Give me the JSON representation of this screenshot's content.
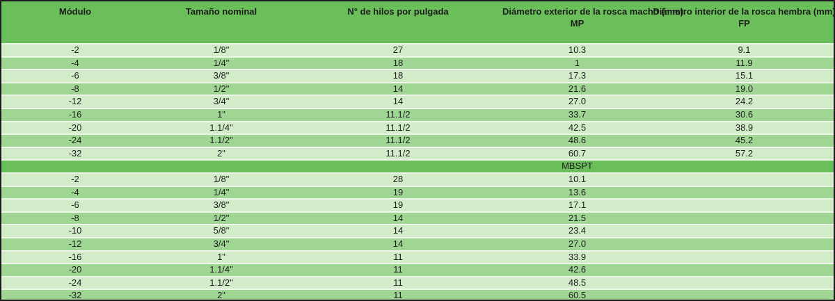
{
  "table": {
    "columns": [
      {
        "line1": "Módulo",
        "line2": ""
      },
      {
        "line1": "Tamaño nominal",
        "line2": ""
      },
      {
        "line1": "N° de hilos por pulgada",
        "line2": ""
      },
      {
        "line1": "Diámetro exterior de la rosca macho (mm)",
        "line2": "MP"
      },
      {
        "line1": "Diámetro interior de la rosca hembra (mm)",
        "line2": "FP"
      }
    ],
    "section_mp": {
      "rows": [
        [
          "-2",
          "1/8\"",
          "27",
          "10.3",
          "9.1"
        ],
        [
          "-4",
          "1/4\"",
          "18",
          "1",
          "11.9"
        ],
        [
          "-6",
          "3/8\"",
          "18",
          "17.3",
          "15.1"
        ],
        [
          "-8",
          "1/2\"",
          "14",
          "21.6",
          "19.0"
        ],
        [
          "-12",
          "3/4\"",
          "14",
          "27.0",
          "24.2"
        ],
        [
          "-16",
          "1\"",
          "11.1/2",
          "33.7",
          "30.6"
        ],
        [
          "-20",
          "1.1/4\"",
          "11.1/2",
          "42.5",
          "38.9"
        ],
        [
          "-24",
          "1.1/2\"",
          "11.1/2",
          "48.6",
          "45.2"
        ],
        [
          "-32",
          "2\"",
          "11.1/2",
          "60.7",
          "57.2"
        ]
      ]
    },
    "divider_label": "MBSPT",
    "section_mbspt": {
      "rows": [
        [
          "-2",
          "1/8\"",
          "28",
          "10.1",
          ""
        ],
        [
          "-4",
          "1/4\"",
          "19",
          "13.6",
          ""
        ],
        [
          "-6",
          "3/8\"",
          "19",
          "17.1",
          ""
        ],
        [
          "-8",
          "1/2\"",
          "14",
          "21.5",
          ""
        ],
        [
          "-10",
          "5/8\"",
          "14",
          "23.4",
          ""
        ],
        [
          "-12",
          "3/4\"",
          "14",
          "27.0",
          ""
        ],
        [
          "-16",
          "1\"",
          "11",
          "33.9",
          ""
        ],
        [
          "-20",
          "1.1/4\"",
          "11",
          "42.6",
          ""
        ],
        [
          "-24",
          "1.1/2\"",
          "11",
          "48.5",
          ""
        ],
        [
          "-32",
          "2\"",
          "11",
          "60.5",
          ""
        ]
      ]
    }
  },
  "colors": {
    "header_green": "#6abf5a",
    "row_light": "#d2ebc8",
    "row_medium": "#a0d693",
    "separator": "#edf6e9",
    "border": "#1a1a1a",
    "text": "#1d1d1d"
  }
}
